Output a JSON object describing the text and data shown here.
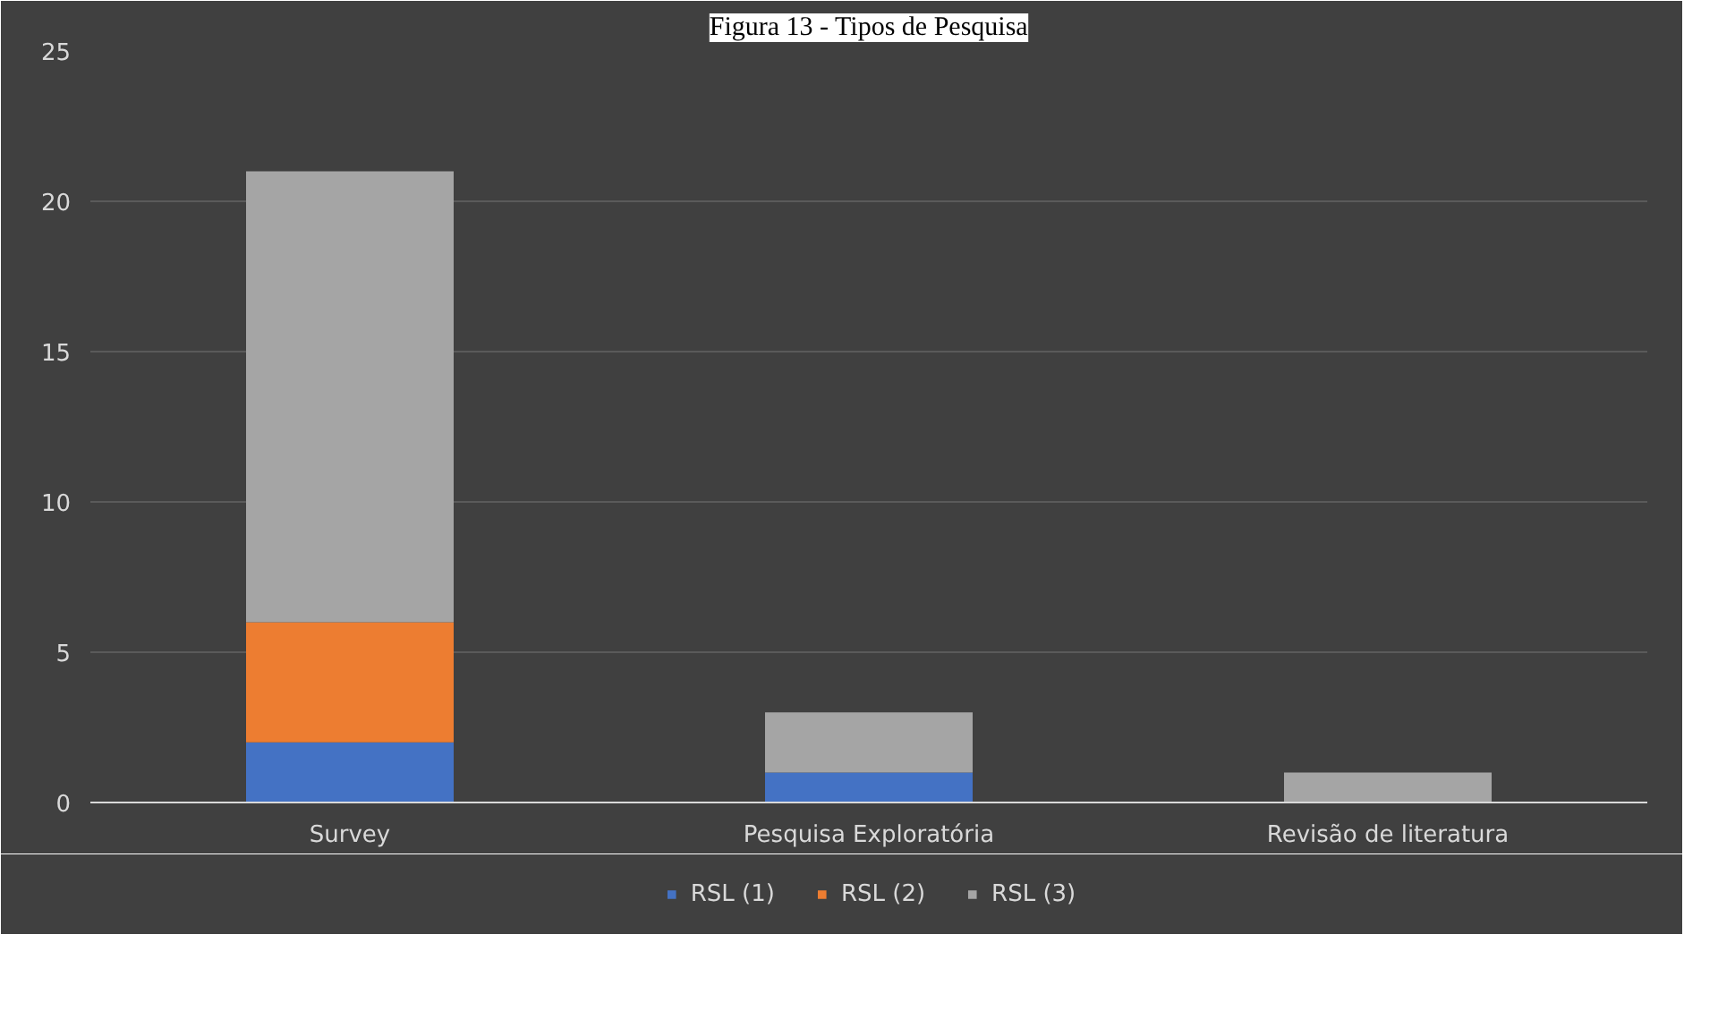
{
  "chart_data": {
    "type": "bar",
    "title": "Figura 13 - Tipos de Pesquisa",
    "categories": [
      "Survey",
      "Pesquisa Exploratória",
      "Revisão de literatura"
    ],
    "stacked": true,
    "series": [
      {
        "name": "RSL (1)",
        "color": "#4472c4",
        "values": [
          2,
          1,
          0
        ]
      },
      {
        "name": "RSL (2)",
        "color": "#ed7d31",
        "values": [
          4,
          0,
          0
        ]
      },
      {
        "name": "RSL (3)",
        "color": "#a5a5a5",
        "values": [
          15,
          2,
          1
        ]
      }
    ],
    "ylim": [
      0,
      25
    ],
    "yticks": [
      0,
      5,
      10,
      15,
      20,
      25
    ],
    "grid": "y",
    "legend": "bottom"
  }
}
